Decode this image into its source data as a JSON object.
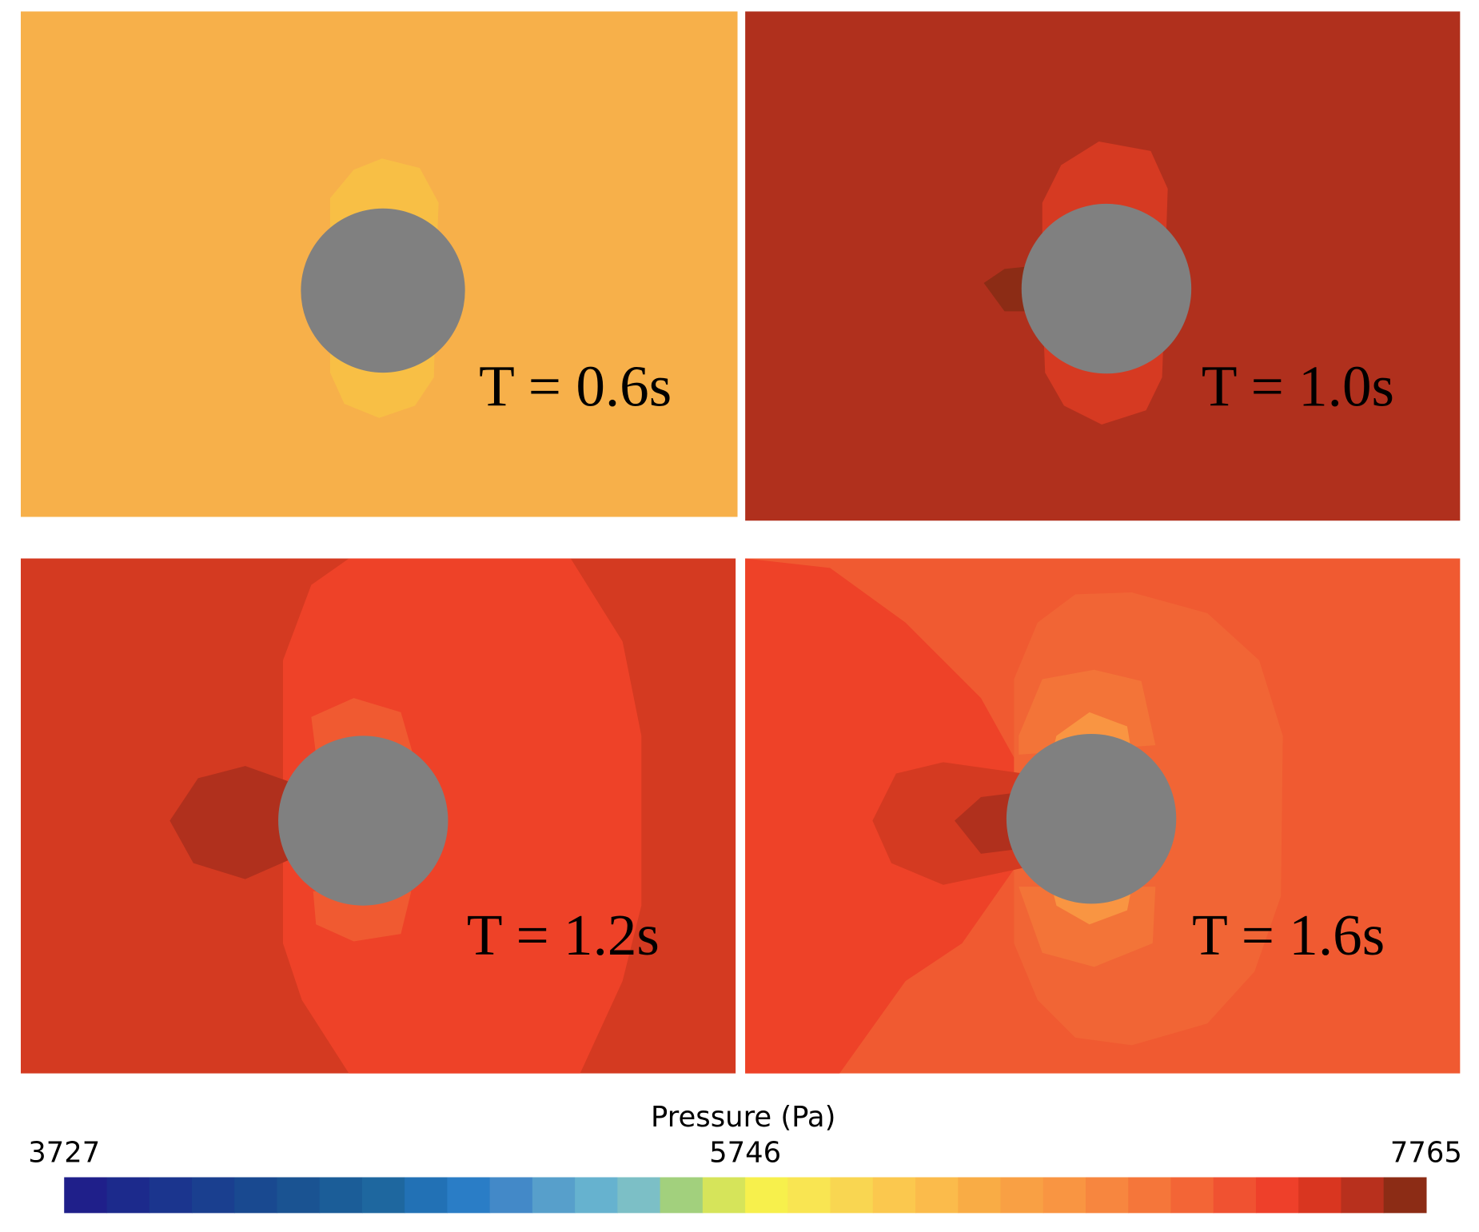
{
  "panels": [
    {
      "label": "T = 0.6s"
    },
    {
      "label": "T = 1.0s"
    },
    {
      "label": "T = 1.2s"
    },
    {
      "label": "T = 1.6s"
    }
  ],
  "colorbar": {
    "title": "Pressure (Pa)",
    "ticks": [
      3727,
      5746,
      7765
    ],
    "range": [
      3727,
      7765
    ],
    "colors": [
      "#1f1f8a",
      "#1c2a8c",
      "#1b358e",
      "#1a3f8f",
      "#194990",
      "#1a5392",
      "#1b5d98",
      "#1e679f",
      "#2271b5",
      "#2a7dc6",
      "#4389c8",
      "#579fcb",
      "#66b2cf",
      "#7cbfc6",
      "#a2d07d",
      "#d6e45a",
      "#f7f04c",
      "#f9e552",
      "#f9d651",
      "#fbc84e",
      "#fbbb4b",
      "#f9ac45",
      "#f9a044",
      "#f99542",
      "#f7863f",
      "#f5763a",
      "#f36536",
      "#f05231",
      "#ee402a",
      "#d93620",
      "#b8301d",
      "#8c2c15"
    ]
  }
}
